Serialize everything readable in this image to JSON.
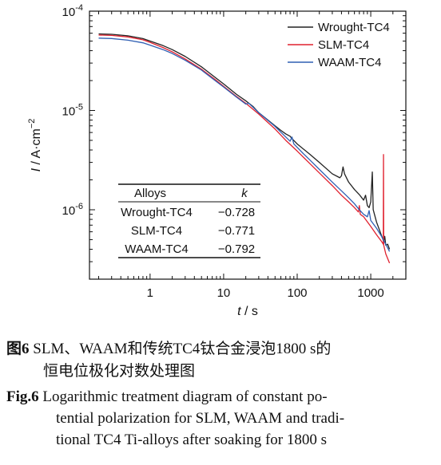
{
  "chart_data": {
    "type": "line",
    "xscale": "log",
    "yscale": "log",
    "xlim": [
      0.15,
      3000
    ],
    "ylim": [
      2e-07,
      0.0001
    ],
    "xlabel_italic": "t",
    "xlabel_unit": " / s",
    "ylabel_italic": "I",
    "ylabel_unit": " / A·cm",
    "ylabel_exp": "−2",
    "x_ticks": [
      {
        "value": 1,
        "label": "1"
      },
      {
        "value": 10,
        "label": "10"
      },
      {
        "value": 100,
        "label": "100"
      },
      {
        "value": 1000,
        "label": "1000"
      }
    ],
    "y_ticks": [
      {
        "value": 1e-06,
        "mantissa": "10",
        "exp": "-6"
      },
      {
        "value": 1e-05,
        "mantissa": "10",
        "exp": "-5"
      },
      {
        "value": 0.0001,
        "mantissa": "10",
        "exp": "-4"
      }
    ],
    "legend_position": "top-right",
    "series": [
      {
        "name": "Wrought-TC4",
        "color": "#222222",
        "points": [
          [
            0.2,
            5.9e-05
          ],
          [
            0.3,
            5.85e-05
          ],
          [
            0.5,
            5.65e-05
          ],
          [
            0.8,
            5.3e-05
          ],
          [
            1,
            5e-05
          ],
          [
            1.5,
            4.5e-05
          ],
          [
            2,
            4.1e-05
          ],
          [
            3,
            3.5e-05
          ],
          [
            5,
            2.75e-05
          ],
          [
            8,
            2.1e-05
          ],
          [
            10,
            1.85e-05
          ],
          [
            15,
            1.45e-05
          ],
          [
            20,
            1.25e-05
          ],
          [
            25,
            1.1e-05
          ],
          [
            30,
            9.5e-06
          ],
          [
            40,
            8e-06
          ],
          [
            50,
            7e-06
          ],
          [
            60,
            6.3e-06
          ],
          [
            70,
            5.8e-06
          ],
          [
            80,
            5.5e-06
          ],
          [
            85,
            5.2e-06
          ],
          [
            100,
            4.6e-06
          ],
          [
            150,
            3.6e-06
          ],
          [
            200,
            3e-06
          ],
          [
            300,
            2.3e-06
          ],
          [
            380,
            2.1e-06
          ],
          [
            400,
            2.2e-06
          ],
          [
            420,
            2.7e-06
          ],
          [
            440,
            2.3e-06
          ],
          [
            500,
            1.9e-06
          ],
          [
            600,
            1.6e-06
          ],
          [
            700,
            1.42e-06
          ],
          [
            800,
            1.25e-06
          ],
          [
            850,
            1.4e-06
          ],
          [
            900,
            1.1e-06
          ],
          [
            950,
            1.05e-06
          ],
          [
            1000,
            1.2e-06
          ],
          [
            1050,
            2.4e-06
          ],
          [
            1080,
            1e-06
          ],
          [
            1200,
            7.5e-07
          ],
          [
            1400,
            5.5e-07
          ],
          [
            1500,
            4.8e-07
          ],
          [
            1550,
            5.4e-07
          ],
          [
            1600,
            4.4e-07
          ],
          [
            1700,
            4.5e-07
          ],
          [
            1800,
            4e-07
          ]
        ]
      },
      {
        "name": "SLM-TC4",
        "color": "#e0202e",
        "points": [
          [
            0.2,
            5.75e-05
          ],
          [
            0.3,
            5.7e-05
          ],
          [
            0.5,
            5.5e-05
          ],
          [
            0.8,
            5.15e-05
          ],
          [
            1,
            4.85e-05
          ],
          [
            1.5,
            4.3e-05
          ],
          [
            2,
            3.9e-05
          ],
          [
            3,
            3.3e-05
          ],
          [
            5,
            2.6e-05
          ],
          [
            8,
            2e-05
          ],
          [
            10,
            1.75e-05
          ],
          [
            15,
            1.38e-05
          ],
          [
            20,
            1.18e-05
          ],
          [
            30,
            9.2e-06
          ],
          [
            50,
            6.5e-06
          ],
          [
            70,
            5e-06
          ],
          [
            100,
            3.9e-06
          ],
          [
            150,
            2.9e-06
          ],
          [
            200,
            2.35e-06
          ],
          [
            300,
            1.75e-06
          ],
          [
            400,
            1.4e-06
          ],
          [
            500,
            1.2e-06
          ],
          [
            600,
            1.05e-06
          ],
          [
            680,
            9.5e-07
          ],
          [
            700,
            1.1e-06
          ],
          [
            720,
            9e-07
          ],
          [
            800,
            8.5e-07
          ],
          [
            1000,
            6.8e-07
          ],
          [
            1200,
            5.6e-07
          ],
          [
            1400,
            4.8e-07
          ],
          [
            1480,
            4.5e-07
          ],
          [
            1490,
            3.6e-06
          ],
          [
            1500,
            4.4e-07
          ],
          [
            1600,
            3.6e-07
          ],
          [
            1800,
            2.9e-07
          ]
        ]
      },
      {
        "name": "WAAM-TC4",
        "color": "#2f5fb3",
        "points": [
          [
            0.2,
            5.35e-05
          ],
          [
            0.3,
            5.3e-05
          ],
          [
            0.5,
            5.1e-05
          ],
          [
            0.8,
            4.8e-05
          ],
          [
            1,
            4.55e-05
          ],
          [
            1.5,
            4.1e-05
          ],
          [
            2,
            3.75e-05
          ],
          [
            3,
            3.2e-05
          ],
          [
            5,
            2.55e-05
          ],
          [
            8,
            1.95e-05
          ],
          [
            10,
            1.72e-05
          ],
          [
            15,
            1.36e-05
          ],
          [
            20,
            1.16e-05
          ],
          [
            22,
            1.18e-05
          ],
          [
            25,
            1.08e-05
          ],
          [
            30,
            9.5e-06
          ],
          [
            50,
            6.9e-06
          ],
          [
            80,
            4.9e-06
          ],
          [
            85,
            5.4e-06
          ],
          [
            90,
            4.6e-06
          ],
          [
            120,
            3.7e-06
          ],
          [
            150,
            3.15e-06
          ],
          [
            200,
            2.55e-06
          ],
          [
            300,
            1.9e-06
          ],
          [
            400,
            1.55e-06
          ],
          [
            500,
            1.32e-06
          ],
          [
            600,
            1.15e-06
          ],
          [
            700,
            1e-06
          ],
          [
            800,
            9e-07
          ],
          [
            900,
            8.5e-07
          ],
          [
            950,
            9.8e-07
          ],
          [
            1000,
            7.8e-07
          ],
          [
            1200,
            6.5e-07
          ],
          [
            1400,
            5.4e-07
          ],
          [
            1600,
            4.5e-07
          ],
          [
            1800,
            3.8e-07
          ]
        ]
      }
    ],
    "table": {
      "header": [
        "Alloys",
        "k"
      ],
      "rows": [
        [
          "Wrought-TC4",
          "−0.728"
        ],
        [
          "SLM-TC4",
          "−0.771"
        ],
        [
          "WAAM-TC4",
          "−0.792"
        ]
      ]
    }
  },
  "caption": {
    "cn_label": "图",
    "cn_num": "6",
    "cn_line1": " SLM、WAAM和传统TC4钛合金浸泡1800 s的",
    "cn_line2": "恒电位极化对数处理图",
    "en_label": "Fig.6",
    "en_line1": " Logarithmic treatment diagram of constant po-",
    "en_line2": "tential polarization for SLM, WAAM and tradi-",
    "en_line3": "tional TC4 Ti-alloys after soaking for 1800 s"
  }
}
